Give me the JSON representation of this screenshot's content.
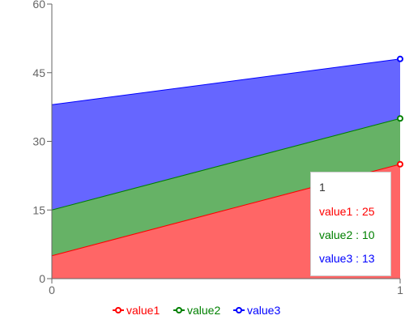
{
  "chart_data": {
    "type": "area",
    "stacked": true,
    "x": [
      0,
      1
    ],
    "series": [
      {
        "name": "value1",
        "values": [
          5,
          25
        ],
        "color": "#ff0000"
      },
      {
        "name": "value2",
        "values": [
          10,
          10
        ],
        "color": "#008000"
      },
      {
        "name": "value3",
        "values": [
          23,
          13
        ],
        "color": "#0000ff"
      }
    ],
    "ylim": [
      0,
      60
    ],
    "y_ticks": [
      0,
      15,
      30,
      45,
      60
    ],
    "x_ticks": [
      0,
      1
    ],
    "grid": false,
    "legend_position": "bottom-center"
  },
  "tooltip": {
    "title": "1",
    "rows": [
      {
        "label": "value1",
        "sep": ":",
        "value": "25",
        "color": "#ff0000"
      },
      {
        "label": "value2",
        "sep": ":",
        "value": "10",
        "color": "#008000"
      },
      {
        "label": "value3",
        "sep": ":",
        "value": "13",
        "color": "#0000ff"
      }
    ]
  }
}
